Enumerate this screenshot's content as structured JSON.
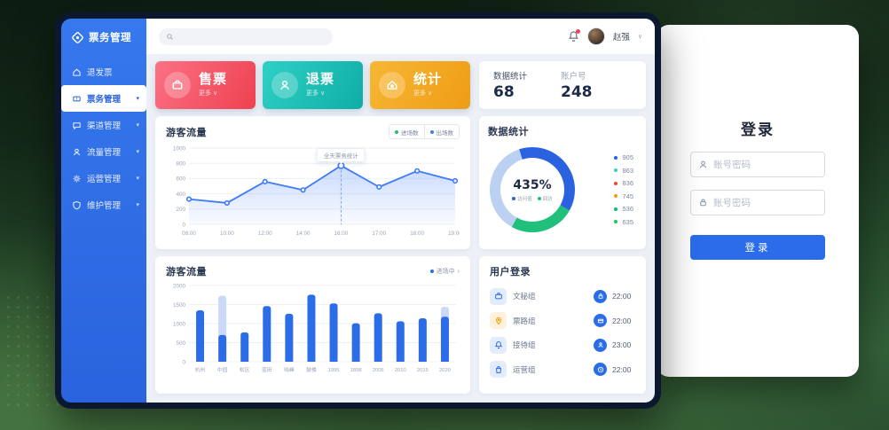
{
  "colors": {
    "accent": "#2b6de8",
    "sidebar": "#2f6be4",
    "red": "#f4596a",
    "teal": "#17bdb1",
    "orange": "#f2a51f"
  },
  "sidebar": {
    "logo": "票务管理",
    "items": [
      {
        "label": "退发票",
        "icon": "house-icon",
        "active": false,
        "chevron": false
      },
      {
        "label": "票务管理",
        "icon": "ticket-icon",
        "active": true,
        "chevron": true
      },
      {
        "label": "渠道管理",
        "icon": "chat-icon",
        "active": false,
        "chevron": true
      },
      {
        "label": "流量管理",
        "icon": "user-icon",
        "active": false,
        "chevron": true
      },
      {
        "label": "运营管理",
        "icon": "gear-icon",
        "active": false,
        "chevron": true
      },
      {
        "label": "维护管理",
        "icon": "shield-icon",
        "active": false,
        "chevron": true
      }
    ]
  },
  "topbar": {
    "search_placeholder": "",
    "user_name": "赵强",
    "chevron": "∨"
  },
  "action_cards": [
    {
      "label": "售票",
      "sub": "更多 ∨",
      "icon": "briefcase-icon",
      "from": "#fb7185",
      "to": "#ee4150"
    },
    {
      "label": "退票",
      "sub": "更多 ∨",
      "icon": "person-icon",
      "from": "#2fd0c5",
      "to": "#0fada6"
    },
    {
      "label": "统计",
      "sub": "更多 ∨",
      "icon": "home-icon",
      "from": "#f7b733",
      "to": "#ef9c16"
    }
  ],
  "stats_card": {
    "items": [
      {
        "label": "数据统计",
        "value": "68"
      },
      {
        "label": "账户号",
        "value": "248"
      }
    ]
  },
  "chart_data": [
    {
      "type": "line",
      "title": "游客流量",
      "legend": [
        {
          "label": "进场数",
          "color": "#22c55e"
        },
        {
          "label": "出场数",
          "color": "#3e7bfa"
        }
      ],
      "x": [
        "08:00",
        "10:00",
        "12:00",
        "14:00",
        "16:00",
        "17:00",
        "18:00",
        "19:00"
      ],
      "values": [
        330,
        280,
        560,
        450,
        770,
        490,
        700,
        570
      ],
      "ylim": [
        0,
        1000
      ],
      "yticks": [
        0,
        200,
        400,
        600,
        800,
        1000
      ],
      "tooltip": {
        "index": 4,
        "text": "全天票务统计"
      },
      "line_color": "#3e7bfa",
      "grid": true,
      "legend_position": "top-right"
    },
    {
      "type": "donut",
      "title": "数据统计",
      "center_value": "435%",
      "segments": [
        {
          "color": "#2a62e0",
          "pct": 38
        },
        {
          "color": "#21c07a",
          "pct": 25
        },
        {
          "color": "#bcd0f2",
          "pct": 37
        }
      ],
      "center_legend": [
        {
          "label": "访问值",
          "color": "#2a62e0"
        },
        {
          "label": "回访",
          "color": "#21c07a"
        }
      ],
      "legend": [
        {
          "value": "905",
          "color": "#2563eb"
        },
        {
          "value": "863",
          "color": "#2dd4bf"
        },
        {
          "value": "836",
          "color": "#ef4444"
        },
        {
          "value": "745",
          "color": "#f59e0b"
        },
        {
          "value": "536",
          "color": "#10b981"
        },
        {
          "value": "635",
          "color": "#22c55e"
        }
      ],
      "legend_position": "right"
    },
    {
      "type": "bar",
      "title": "游客流量",
      "legend_link": {
        "label": "进场中",
        "chevron": "›",
        "color": "#2b6de8"
      },
      "categories": [
        "杭州",
        "中园",
        "松区",
        "蓝田",
        "晓峰",
        "鼓楼",
        "1995",
        "1898",
        "2005",
        "2010",
        "2015",
        "2020"
      ],
      "values": [
        1350,
        700,
        770,
        1460,
        1260,
        1760,
        1530,
        1010,
        1270,
        1060,
        1140,
        1180
      ],
      "light_values": [
        0,
        1030,
        0,
        0,
        0,
        0,
        0,
        0,
        0,
        0,
        0,
        260
      ],
      "ylim": [
        0,
        2000
      ],
      "yticks": [
        0,
        500,
        1000,
        1500,
        2000
      ],
      "bar_color": "#2b6de8",
      "light_color": "#c9d9f6",
      "grid": true
    }
  ],
  "user_login": {
    "title": "用户登录",
    "rows": [
      {
        "icon": "briefcase-icon",
        "icon_color": "#2b6de8",
        "icon_bg": "#e3ecfd",
        "name": "文秘组",
        "right_icon": "lock-icon",
        "time": "22:00"
      },
      {
        "icon": "pin-icon",
        "icon_color": "#f59e0b",
        "icon_bg": "#fdf0dc",
        "name": "票路组",
        "right_icon": "card-icon",
        "time": "22:00"
      },
      {
        "icon": "bell-icon",
        "icon_color": "#2b6de8",
        "icon_bg": "#e3ecfd",
        "name": "接待组",
        "right_icon": "person-icon",
        "time": "23:00"
      },
      {
        "icon": "bag-icon",
        "icon_color": "#2b6de8",
        "icon_bg": "#e3ecfd",
        "name": "运营组",
        "right_icon": "clock-icon",
        "time": "22:00"
      }
    ]
  },
  "login_panel": {
    "title": "登录",
    "fields": [
      {
        "placeholder": "账号密码",
        "icon": "person-icon"
      },
      {
        "placeholder": "账号密码",
        "icon": "lock-icon"
      }
    ],
    "button": "登录"
  }
}
